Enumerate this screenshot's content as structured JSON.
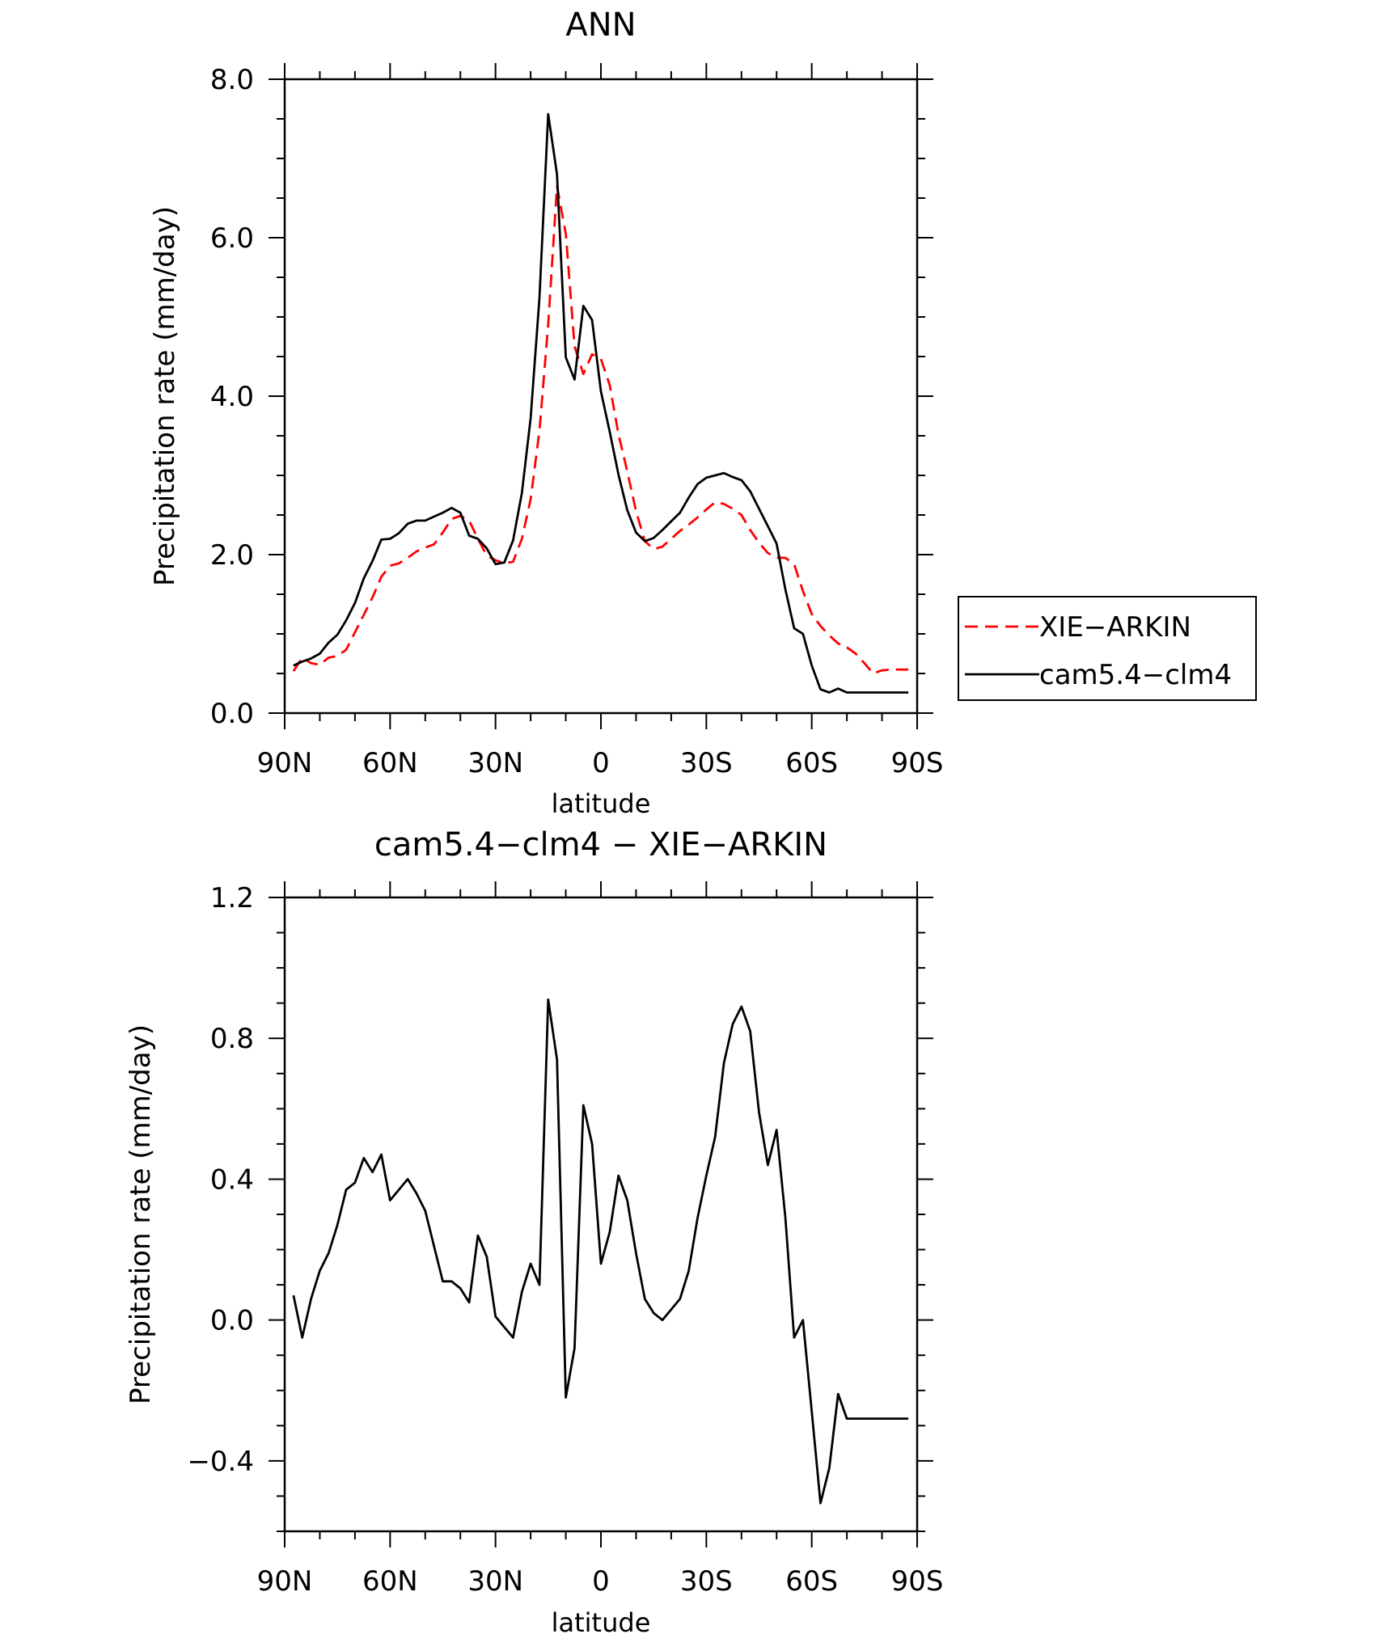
{
  "chart_data": [
    {
      "type": "line",
      "title": "ANN",
      "xlabel": "latitude",
      "ylabel": "Precipitation rate (mm/day)",
      "xlim": [
        90,
        -90
      ],
      "ylim": [
        0.0,
        8.0
      ],
      "x_ticks": [
        {
          "value": 90,
          "label": "90N"
        },
        {
          "value": 60,
          "label": "60N"
        },
        {
          "value": 30,
          "label": "30N"
        },
        {
          "value": 0,
          "label": "0"
        },
        {
          "value": -30,
          "label": "30S"
        },
        {
          "value": -60,
          "label": "60S"
        },
        {
          "value": -90,
          "label": "90S"
        }
      ],
      "y_ticks": [
        {
          "value": 0.0,
          "label": "0.0"
        },
        {
          "value": 2.0,
          "label": "2.0"
        },
        {
          "value": 4.0,
          "label": "4.0"
        },
        {
          "value": 6.0,
          "label": "6.0"
        },
        {
          "value": 8.0,
          "label": "8.0"
        }
      ],
      "legend_position": "right",
      "series": [
        {
          "name": "XIE-ARKIN",
          "color": "#ff0000",
          "dash": "dashed",
          "x": [
            87.5,
            85,
            82.5,
            80,
            77.5,
            75,
            72.5,
            70,
            67.5,
            65,
            62.5,
            60,
            57.5,
            55,
            52.5,
            50,
            47.5,
            45,
            42.5,
            40,
            37.5,
            35,
            32.5,
            30,
            27.5,
            25,
            22.5,
            20,
            17.5,
            15,
            12.5,
            10,
            7.5,
            5,
            2.5,
            0,
            -2.5,
            -5,
            -7.5,
            -10,
            -12.5,
            -15,
            -17.5,
            -20,
            -22.5,
            -25,
            -27.5,
            -30,
            -32.5,
            -35,
            -37.5,
            -40,
            -42.5,
            -45,
            -47.5,
            -50,
            -52.5,
            -55,
            -57.5,
            -60,
            -62.5,
            -65,
            -67.5,
            -70,
            -72.5,
            -75,
            -77.5,
            -80,
            -82.5,
            -85,
            -87.5
          ],
          "y": [
            0.53,
            0.7,
            0.63,
            0.61,
            0.7,
            0.72,
            0.8,
            1.02,
            1.24,
            1.46,
            1.72,
            1.86,
            1.89,
            1.96,
            2.04,
            2.09,
            2.13,
            2.28,
            2.45,
            2.49,
            2.43,
            2.2,
            1.99,
            1.93,
            1.89,
            1.91,
            2.2,
            2.7,
            3.56,
            4.9,
            6.65,
            6.05,
            4.63,
            4.28,
            4.53,
            4.47,
            4.14,
            3.52,
            3.05,
            2.55,
            2.17,
            2.07,
            2.1,
            2.2,
            2.3,
            2.38,
            2.47,
            2.57,
            2.66,
            2.64,
            2.58,
            2.5,
            2.31,
            2.15,
            2.02,
            1.96,
            1.96,
            1.88,
            1.54,
            1.25,
            1.1,
            0.98,
            0.88,
            0.83,
            0.75,
            0.63,
            0.5,
            0.54,
            0.55,
            0.55,
            0.55
          ]
        },
        {
          "name": "cam5.4-clm4",
          "color": "#000000",
          "dash": "solid",
          "x": [
            87.5,
            85,
            82.5,
            80,
            77.5,
            75,
            72.5,
            70,
            67.5,
            65,
            62.5,
            60,
            57.5,
            55,
            52.5,
            50,
            47.5,
            45,
            42.5,
            40,
            37.5,
            35,
            32.5,
            30,
            27.5,
            25,
            22.5,
            20,
            17.5,
            15,
            12.5,
            10,
            7.5,
            5,
            2.5,
            0,
            -2.5,
            -5,
            -7.5,
            -10,
            -12.5,
            -15,
            -17.5,
            -20,
            -22.5,
            -25,
            -27.5,
            -30,
            -32.5,
            -35,
            -37.5,
            -40,
            -42.5,
            -45,
            -47.5,
            -50,
            -52.5,
            -55,
            -57.5,
            -60,
            -62.5,
            -65,
            -67.5,
            -70,
            -72.5,
            -75,
            -77.5,
            -80,
            -82.5,
            -85,
            -87.5
          ],
          "y": [
            0.6,
            0.65,
            0.69,
            0.75,
            0.89,
            0.99,
            1.17,
            1.39,
            1.7,
            1.92,
            2.19,
            2.2,
            2.27,
            2.39,
            2.43,
            2.43,
            2.48,
            2.53,
            2.59,
            2.53,
            2.24,
            2.2,
            2.08,
            1.88,
            1.9,
            2.18,
            2.78,
            3.72,
            5.24,
            7.56,
            6.8,
            4.49,
            4.21,
            5.14,
            4.96,
            4.06,
            3.55,
            3.01,
            2.56,
            2.28,
            2.17,
            2.21,
            2.31,
            2.42,
            2.53,
            2.72,
            2.89,
            2.97,
            3.0,
            3.03,
            2.98,
            2.94,
            2.8,
            2.58,
            2.36,
            2.14,
            1.56,
            1.07,
            1.0,
            0.6,
            0.3,
            0.26,
            0.31,
            0.26,
            0.26,
            0.26,
            0.26,
            0.26,
            0.26,
            0.26,
            0.26
          ]
        }
      ]
    },
    {
      "type": "line",
      "title": "cam5.4-clm4 - XIE-ARKIN",
      "xlabel": "latitude",
      "ylabel": "Precipitation rate (mm/day)",
      "xlim": [
        90,
        -90
      ],
      "ylim": [
        -0.6,
        1.2
      ],
      "x_ticks": [
        {
          "value": 90,
          "label": "90N"
        },
        {
          "value": 60,
          "label": "60N"
        },
        {
          "value": 30,
          "label": "30N"
        },
        {
          "value": 0,
          "label": "0"
        },
        {
          "value": -30,
          "label": "30S"
        },
        {
          "value": -60,
          "label": "60S"
        },
        {
          "value": -90,
          "label": "90S"
        }
      ],
      "y_ticks": [
        {
          "value": -0.4,
          "label": "-0.4"
        },
        {
          "value": 0.0,
          "label": "0.0"
        },
        {
          "value": 0.4,
          "label": "0.4"
        },
        {
          "value": 0.8,
          "label": "0.8"
        },
        {
          "value": 1.2,
          "label": "1.2"
        }
      ],
      "series": [
        {
          "name": "cam5.4-clm4 - XIE-ARKIN",
          "color": "#000000",
          "dash": "solid",
          "x": [
            87.5,
            85,
            82.5,
            80,
            77.5,
            75,
            72.5,
            70,
            67.5,
            65,
            62.5,
            60,
            57.5,
            55,
            52.5,
            50,
            47.5,
            45,
            42.5,
            40,
            37.5,
            35,
            32.5,
            30,
            27.5,
            25,
            22.5,
            20,
            17.5,
            15,
            12.5,
            10,
            7.5,
            5,
            2.5,
            0,
            -2.5,
            -5,
            -7.5,
            -10,
            -12.5,
            -15,
            -17.5,
            -20,
            -22.5,
            -25,
            -27.5,
            -30,
            -32.5,
            -35,
            -37.5,
            -40,
            -42.5,
            -45,
            -47.5,
            -50,
            -52.5,
            -55,
            -57.5,
            -60,
            -62.5,
            -65,
            -67.5,
            -70,
            -72.5,
            -75,
            -77.5,
            -80,
            -82.5,
            -85,
            -87.5
          ],
          "y": [
            0.07,
            -0.05,
            0.06,
            0.14,
            0.19,
            0.27,
            0.37,
            0.39,
            0.46,
            0.42,
            0.47,
            0.34,
            0.37,
            0.4,
            0.36,
            0.31,
            0.21,
            0.11,
            0.11,
            0.09,
            0.05,
            0.24,
            0.18,
            0.01,
            -0.02,
            -0.05,
            0.08,
            0.16,
            0.1,
            0.91,
            0.74,
            -0.22,
            -0.08,
            0.61,
            0.5,
            0.16,
            0.25,
            0.41,
            0.34,
            0.19,
            0.06,
            0.02,
            0.0,
            0.03,
            0.06,
            0.14,
            0.29,
            0.41,
            0.52,
            0.73,
            0.84,
            0.89,
            0.82,
            0.59,
            0.44,
            0.54,
            0.29,
            -0.05,
            0.0,
            -0.26,
            -0.52,
            -0.42,
            -0.21,
            -0.28,
            -0.28,
            -0.28,
            -0.28,
            -0.28,
            -0.28,
            -0.28,
            -0.28
          ]
        }
      ]
    }
  ]
}
